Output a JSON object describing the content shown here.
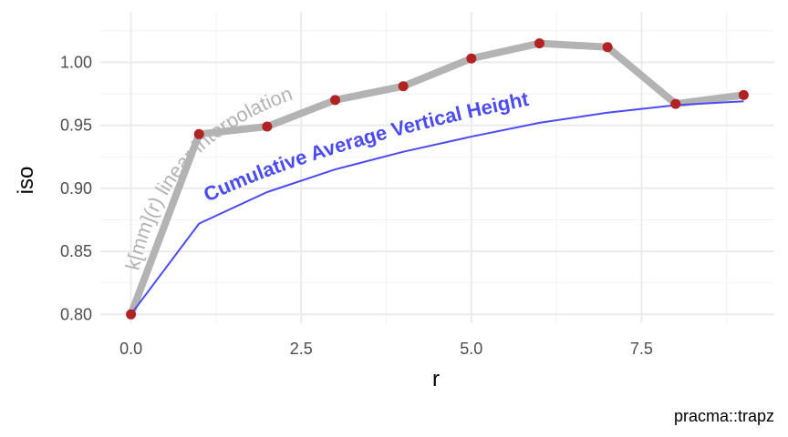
{
  "chart_data": {
    "type": "line",
    "xlabel": "r",
    "ylabel": "iso",
    "caption": "pracma::trapz",
    "xlim": [
      -0.45,
      9.45
    ],
    "ylim": [
      0.793,
      1.04
    ],
    "x_ticks": [
      0,
      2.5,
      5,
      7.5
    ],
    "x_tick_labels": [
      "0.0",
      "2.5",
      "5.0",
      "7.5"
    ],
    "y_ticks": [
      0.8,
      0.85,
      0.9,
      0.95,
      1.0
    ],
    "y_tick_labels": [
      "0.80",
      "0.85",
      "0.90",
      "0.95",
      "1.00"
    ],
    "grid": true,
    "series": [
      {
        "name": "k[mm](r) linear interpolation",
        "style": "line",
        "color": "#b3b3b3",
        "x": [
          0,
          1,
          2,
          3,
          4,
          5,
          6,
          7,
          8,
          9
        ],
        "y": [
          0.8,
          0.943,
          0.949,
          0.97,
          0.981,
          1.003,
          1.015,
          1.012,
          0.967,
          0.974
        ]
      },
      {
        "name": "",
        "style": "points",
        "color": "#b22222",
        "x": [
          0,
          1,
          2,
          3,
          4,
          5,
          6,
          7,
          8,
          9
        ],
        "y": [
          0.8,
          0.943,
          0.949,
          0.97,
          0.981,
          1.003,
          1.015,
          1.012,
          0.967,
          0.974
        ]
      },
      {
        "name": "Cumulative Average Vertical Height",
        "style": "line",
        "color": "#4b4bf0",
        "x": [
          0,
          1,
          2,
          3,
          4,
          5,
          6,
          7,
          8,
          9
        ],
        "y": [
          0.8,
          0.872,
          0.897,
          0.915,
          0.929,
          0.941,
          0.952,
          0.96,
          0.966,
          0.969
        ]
      }
    ]
  }
}
